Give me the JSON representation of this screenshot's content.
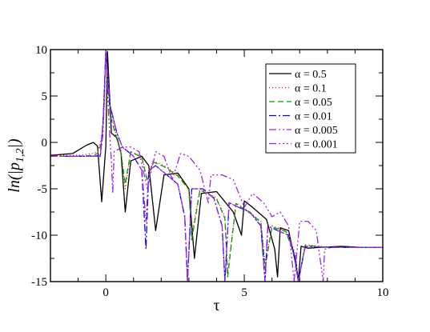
{
  "chart_data": {
    "type": "line",
    "title": "",
    "xlabel": "τ",
    "ylabel": "ln(|p",
    "ylabel_sub": "1,2",
    "ylabel_close": "|)",
    "xlim": [
      -2,
      10
    ],
    "ylim": [
      -15,
      10
    ],
    "xticks": [
      0,
      5,
      10
    ],
    "yticks": [
      10,
      5,
      0,
      -5,
      -10,
      -15
    ],
    "xtick_labels": [
      "0",
      "5",
      "10"
    ],
    "ytick_labels": [
      "10",
      "5",
      "0",
      "-5",
      "-10",
      "-15"
    ],
    "grid": false,
    "legend_position": "top-right",
    "series": [
      {
        "name": "α = 0.5",
        "color": "#000000",
        "dash": "solid",
        "x": [
          -2,
          -1.2,
          -0.7,
          -0.45,
          -0.3,
          -0.15,
          0,
          0.06,
          0.2,
          0.4,
          0.55,
          0.7,
          0.9,
          1.3,
          1.55,
          1.8,
          2.1,
          2.6,
          3.0,
          3.2,
          3.45,
          4.0,
          4.6,
          4.9,
          5.0,
          5.3,
          5.8,
          6.1,
          6.2,
          6.3,
          6.6,
          6.85,
          6.95,
          7.05,
          7.3,
          7.8,
          8.5,
          9.2,
          10
        ],
        "y": [
          -1.4,
          -1.2,
          -0.3,
          0.0,
          -0.4,
          -6.4,
          -0.4,
          9.8,
          1.0,
          0.5,
          -1.2,
          -7.5,
          -2.0,
          -1.5,
          -2.5,
          -9.5,
          -3.5,
          -3.3,
          -5.0,
          -12.5,
          -5.5,
          -5.3,
          -7.5,
          -10.0,
          -6.3,
          -7.0,
          -8.3,
          -11.5,
          -14.5,
          -9.2,
          -9.5,
          -13.0,
          -15.0,
          -11.2,
          -11.4,
          -11.3,
          -11.2,
          -11.3,
          -11.3
        ]
      },
      {
        "name": "α = 0.1",
        "color": "#ff0000",
        "dash": "1,3",
        "x": [
          -2,
          -1,
          -0.5,
          -0.3,
          -0.15,
          -0.05,
          0,
          0.15,
          0.4,
          0.55,
          0.7,
          0.9,
          1.3,
          1.5,
          1.7,
          2.1,
          2.6,
          3.0,
          3.1,
          3.4,
          4.0,
          4.3,
          4.4,
          4.7,
          5.2,
          5.6,
          5.75,
          6.0,
          6.5,
          6.85,
          6.95,
          7.2,
          8,
          9,
          10
        ],
        "y": [
          -1.4,
          -1.4,
          -1.2,
          -1.0,
          0.5,
          4.0,
          10.0,
          3.5,
          0.5,
          -1.0,
          -5.0,
          -1.0,
          -1.5,
          -4.0,
          -2.0,
          -2.5,
          -3.5,
          -5.0,
          -10.0,
          -5.0,
          -6.0,
          -8.0,
          -14.0,
          -6.5,
          -7.5,
          -8.5,
          -13.0,
          -9.0,
          -9.5,
          -12.0,
          -15.0,
          -11.0,
          -11.3,
          -11.3,
          -11.3
        ]
      },
      {
        "name": "α = 0.05",
        "color": "#00a000",
        "dash": "7,4",
        "x": [
          -2,
          -1,
          -0.5,
          -0.3,
          -0.15,
          -0.05,
          0,
          0.15,
          0.4,
          0.55,
          0.7,
          0.9,
          1.3,
          1.5,
          1.7,
          2.1,
          2.6,
          3.0,
          3.1,
          3.4,
          4.0,
          4.3,
          4.4,
          4.7,
          5.2,
          5.6,
          5.75,
          6.0,
          6.5,
          6.85,
          6.95,
          7.2,
          8,
          9,
          10
        ],
        "y": [
          -1.5,
          -1.5,
          -1.4,
          -1.2,
          0.0,
          5.0,
          10.0,
          3.0,
          0.3,
          -1.2,
          -4.5,
          -1.0,
          -1.6,
          -4.2,
          -2.1,
          -2.6,
          -3.6,
          -5.1,
          -10.5,
          -5.1,
          -6.1,
          -8.2,
          -14.5,
          -6.6,
          -7.6,
          -8.6,
          -13.5,
          -9.1,
          -9.6,
          -12.5,
          -15.0,
          -11.1,
          -11.3,
          -11.3,
          -11.3
        ]
      },
      {
        "name": "α = 0.01",
        "color": "#0000ff",
        "dash": "9,3,2,3",
        "x": [
          -2,
          -1,
          -0.5,
          -0.2,
          -0.1,
          0,
          0.15,
          0.4,
          0.6,
          1.0,
          1.3,
          1.45,
          1.55,
          1.8,
          2.2,
          2.6,
          2.85,
          2.95,
          3.1,
          3.5,
          3.9,
          4.2,
          4.3,
          4.45,
          4.8,
          5.2,
          5.6,
          5.75,
          5.85,
          6.2,
          6.6,
          6.85,
          6.95,
          7.2,
          8,
          9,
          10
        ],
        "y": [
          -1.5,
          -1.5,
          -1.5,
          -1.4,
          2.0,
          10.0,
          4.0,
          1.0,
          -0.5,
          -1.5,
          -3.0,
          -11.5,
          -3.0,
          -2.5,
          -3.5,
          -4.5,
          -8.0,
          -15.0,
          -5.0,
          -5.0,
          -6.0,
          -9.0,
          -15.0,
          -6.5,
          -7.0,
          -7.5,
          -9.0,
          -15.0,
          -9.0,
          -9.5,
          -10.0,
          -12.5,
          -15.0,
          -11.2,
          -11.3,
          -11.3,
          -11.3
        ]
      },
      {
        "name": "α = 0.005",
        "color": "#a020f0",
        "dash": "9,3,2,3,2,3",
        "x": [
          -2,
          -1,
          -0.5,
          -0.2,
          -0.1,
          0,
          0.15,
          0.4,
          0.6,
          1.0,
          1.3,
          1.45,
          1.55,
          1.8,
          2.2,
          2.6,
          2.85,
          2.95,
          3.1,
          3.5,
          3.9,
          4.2,
          4.3,
          4.45,
          4.8,
          5.2,
          5.6,
          5.75,
          5.85,
          6.2,
          6.6,
          6.85,
          6.95,
          7.2,
          8,
          9,
          10
        ],
        "y": [
          -1.5,
          -1.5,
          -1.5,
          -1.4,
          2.0,
          10.0,
          4.0,
          1.0,
          -0.5,
          -1.5,
          -3.0,
          -8.5,
          -3.0,
          -2.5,
          -3.5,
          -4.5,
          -8.0,
          -15.0,
          -5.0,
          -5.0,
          -6.0,
          -9.0,
          -15.0,
          -6.5,
          -7.0,
          -7.5,
          -9.0,
          -15.0,
          -9.0,
          -9.5,
          -10.0,
          -12.5,
          -15.0,
          -11.2,
          -11.3,
          -11.3,
          -11.3
        ]
      },
      {
        "name": "α = 0.001",
        "color": "#a020f0",
        "dash": "9,3,2,3,2,3,2,3",
        "x": [
          -2,
          -1,
          -0.5,
          -0.2,
          -0.1,
          0,
          0.1,
          0.2,
          0.25,
          0.3,
          0.6,
          0.9,
          1.2,
          1.5,
          1.8,
          2.1,
          2.4,
          2.7,
          3.0,
          3.4,
          3.7,
          3.8,
          4.2,
          4.6,
          5.0,
          5.3,
          5.7,
          6.0,
          6.3,
          6.6,
          6.8,
          7.0,
          7.3,
          7.6,
          7.85,
          7.9,
          8.2,
          9,
          10
        ],
        "y": [
          -1.5,
          -1.5,
          -1.5,
          -1.5,
          1.0,
          10.0,
          3.0,
          -2.0,
          -5.5,
          -1.0,
          -0.5,
          -0.5,
          -1.0,
          -5.0,
          -1.0,
          -1.5,
          -4.0,
          -1.2,
          -1.5,
          -3.0,
          -6.5,
          -3.5,
          -3.5,
          -4.0,
          -7.0,
          -5.5,
          -6.5,
          -8.0,
          -7.5,
          -9.0,
          -15.0,
          -8.5,
          -8.5,
          -9.5,
          -15.0,
          -11.5,
          -11.3,
          -11.3,
          -11.3
        ]
      }
    ]
  }
}
